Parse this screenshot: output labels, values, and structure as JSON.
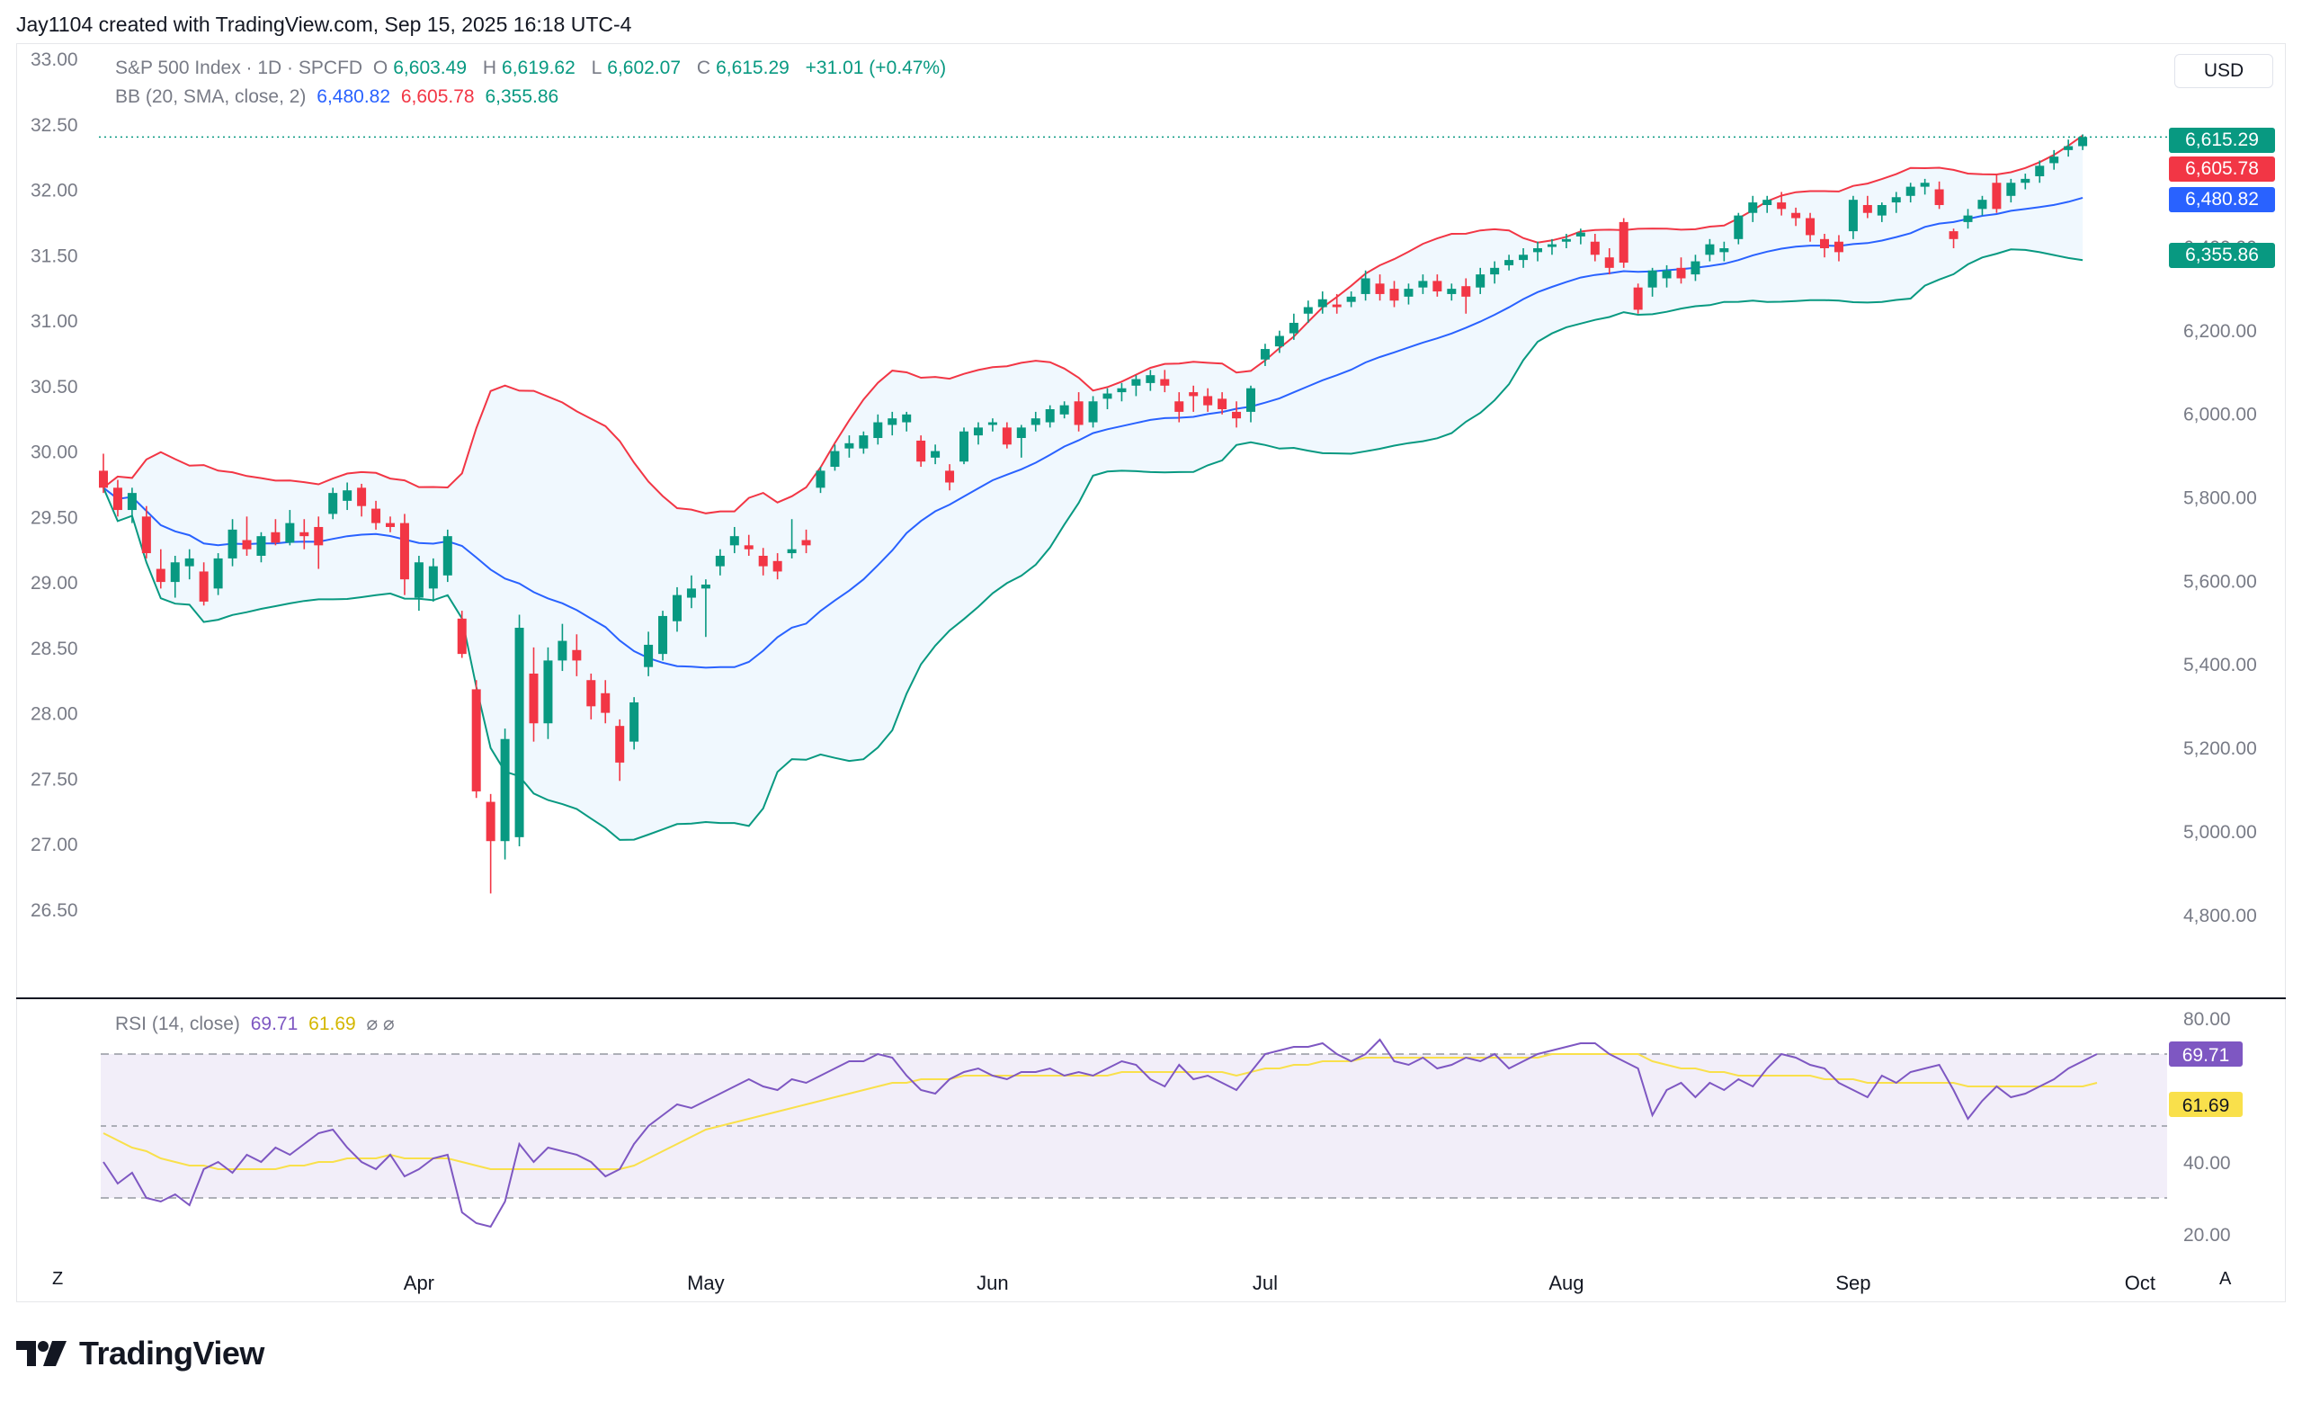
{
  "header": {
    "credit": "Jay1104 created with TradingView.com, Sep 15, 2025 16:18 UTC-4"
  },
  "legend": {
    "main": {
      "symbol": "S&P 500 Index · 1D · SPCFD",
      "o_label": "O",
      "o_value": "6,603.49",
      "h_label": "H",
      "h_value": "6,619.62",
      "l_label": "L",
      "l_value": "6,602.07",
      "c_label": "C",
      "c_value": "6,615.29",
      "change": "+31.01 (+0.47%)"
    },
    "bb": {
      "label": "BB (20, SMA, close, 2)",
      "basis": "6,480.82",
      "upper": "6,605.78",
      "lower": "6,355.86"
    },
    "rsi": {
      "label": "RSI (14, close)",
      "rsi": "69.71",
      "ma": "61.69",
      "icons": "⌀ ⌀"
    }
  },
  "toolbar": {
    "currency_button": "USD",
    "zoom_button": "Z",
    "auto_button": "A"
  },
  "price_tags": {
    "last": "6,615.29",
    "upper": "6,605.78",
    "basis": "6,480.82",
    "lower": "6,355.86"
  },
  "colors": {
    "up": "#089981",
    "down": "#f23645",
    "basis": "#2962ff",
    "upper": "#f23645",
    "lower": "#089981",
    "band_fill": "#e3f2fd",
    "rsi": "#7e57c2",
    "rsi_ma": "#f9e04b"
  },
  "footer": {
    "brand": "TradingView"
  },
  "chart_data": [
    {
      "type": "candlestick",
      "title": "S&P 500 Index · 1D · SPCFD",
      "left_axis": {
        "ticks": [
          "33.00",
          "32.50",
          "32.00",
          "31.50",
          "31.00",
          "30.50",
          "30.00",
          "29.50",
          "29.00",
          "28.50",
          "28.00",
          "27.50",
          "27.00",
          "26.50"
        ],
        "range": [
          26.3,
          33.0
        ]
      },
      "right_axis": {
        "ticks": [
          "6,400.00",
          "6,200.00",
          "6,000.00",
          "5,800.00",
          "5,600.00",
          "5,400.00",
          "5,200.00",
          "5,000.00",
          "4,800.00"
        ],
        "range": [
          4750,
          6850
        ]
      },
      "x_axis": {
        "months": [
          "Apr",
          "May",
          "Jun",
          "Jul",
          "Aug",
          "Sep",
          "Oct"
        ],
        "month_start_index": [
          22,
          42,
          62,
          81,
          102,
          122,
          142
        ]
      },
      "ohlc": [
        [
          29.85,
          29.98,
          29.68,
          29.72
        ],
        [
          29.72,
          29.78,
          29.5,
          29.55
        ],
        [
          29.55,
          29.72,
          29.45,
          29.68
        ],
        [
          29.5,
          29.58,
          29.18,
          29.22
        ],
        [
          29.1,
          29.25,
          28.95,
          29.0
        ],
        [
          29.0,
          29.2,
          28.88,
          29.15
        ],
        [
          29.12,
          29.25,
          29.02,
          29.18
        ],
        [
          29.08,
          29.15,
          28.82,
          28.85
        ],
        [
          28.95,
          29.22,
          28.9,
          29.18
        ],
        [
          29.18,
          29.48,
          29.12,
          29.4
        ],
        [
          29.32,
          29.5,
          29.2,
          29.25
        ],
        [
          29.2,
          29.38,
          29.15,
          29.35
        ],
        [
          29.38,
          29.48,
          29.28,
          29.3
        ],
        [
          29.3,
          29.55,
          29.28,
          29.45
        ],
        [
          29.38,
          29.48,
          29.25,
          29.35
        ],
        [
          29.42,
          29.5,
          29.1,
          29.28
        ],
        [
          29.52,
          29.72,
          29.48,
          29.68
        ],
        [
          29.62,
          29.76,
          29.55,
          29.7
        ],
        [
          29.72,
          29.75,
          29.5,
          29.58
        ],
        [
          29.56,
          29.62,
          29.4,
          29.45
        ],
        [
          29.45,
          29.5,
          29.38,
          29.42
        ],
        [
          29.45,
          29.52,
          28.9,
          29.02
        ],
        [
          28.88,
          29.2,
          28.78,
          29.15
        ],
        [
          28.95,
          29.18,
          28.85,
          29.12
        ],
        [
          29.05,
          29.4,
          29.0,
          29.35
        ],
        [
          28.72,
          28.78,
          28.42,
          28.45
        ],
        [
          28.18,
          28.25,
          27.35,
          27.4
        ],
        [
          27.32,
          27.38,
          26.62,
          27.02
        ],
        [
          27.02,
          27.88,
          26.88,
          27.8
        ],
        [
          27.05,
          28.75,
          26.98,
          28.65
        ],
        [
          28.3,
          28.5,
          27.78,
          27.92
        ],
        [
          27.92,
          28.5,
          27.8,
          28.4
        ],
        [
          28.4,
          28.68,
          28.32,
          28.55
        ],
        [
          28.48,
          28.6,
          28.28,
          28.4
        ],
        [
          28.25,
          28.3,
          27.95,
          28.05
        ],
        [
          28.15,
          28.25,
          27.92,
          28.0
        ],
        [
          27.9,
          27.95,
          27.48,
          27.62
        ],
        [
          27.78,
          28.12,
          27.72,
          28.08
        ],
        [
          28.35,
          28.62,
          28.28,
          28.52
        ],
        [
          28.45,
          28.78,
          28.4,
          28.74
        ],
        [
          28.7,
          28.96,
          28.62,
          28.9
        ],
        [
          28.88,
          29.05,
          28.8,
          28.95
        ],
        [
          28.95,
          29.02,
          28.58,
          28.98
        ],
        [
          29.12,
          29.25,
          29.05,
          29.2
        ],
        [
          29.28,
          29.42,
          29.22,
          29.35
        ],
        [
          29.28,
          29.36,
          29.2,
          29.25
        ],
        [
          29.2,
          29.26,
          29.05,
          29.12
        ],
        [
          29.16,
          29.22,
          29.02,
          29.08
        ],
        [
          29.22,
          29.48,
          29.18,
          29.25
        ],
        [
          29.32,
          29.4,
          29.22,
          29.28
        ],
        [
          29.72,
          29.88,
          29.68,
          29.85
        ],
        [
          29.88,
          30.05,
          29.85,
          30.0
        ],
        [
          30.02,
          30.12,
          29.95,
          30.06
        ],
        [
          30.02,
          30.15,
          29.98,
          30.12
        ],
        [
          30.1,
          30.28,
          30.05,
          30.22
        ],
        [
          30.2,
          30.3,
          30.12,
          30.25
        ],
        [
          30.22,
          30.3,
          30.15,
          30.28
        ],
        [
          30.08,
          30.12,
          29.88,
          29.92
        ],
        [
          29.95,
          30.05,
          29.9,
          30.0
        ],
        [
          29.85,
          29.9,
          29.7,
          29.76
        ],
        [
          29.92,
          30.18,
          29.9,
          30.15
        ],
        [
          30.12,
          30.22,
          30.05,
          30.18
        ],
        [
          30.2,
          30.25,
          30.15,
          30.22
        ],
        [
          30.18,
          30.22,
          30.02,
          30.05
        ],
        [
          30.1,
          30.2,
          29.95,
          30.18
        ],
        [
          30.2,
          30.3,
          30.15,
          30.25
        ],
        [
          30.22,
          30.35,
          30.18,
          30.32
        ],
        [
          30.28,
          30.38,
          30.25,
          30.35
        ],
        [
          30.38,
          30.45,
          30.15,
          30.2
        ],
        [
          30.22,
          30.42,
          30.18,
          30.38
        ],
        [
          30.4,
          30.48,
          30.32,
          30.44
        ],
        [
          30.45,
          30.52,
          30.38,
          30.48
        ],
        [
          30.5,
          30.58,
          30.42,
          30.55
        ],
        [
          30.52,
          30.62,
          30.46,
          30.58
        ],
        [
          30.55,
          30.62,
          30.45,
          30.5
        ],
        [
          30.38,
          30.45,
          30.22,
          30.3
        ],
        [
          30.45,
          30.5,
          30.3,
          30.42
        ],
        [
          30.42,
          30.48,
          30.3,
          30.35
        ],
        [
          30.4,
          30.45,
          30.28,
          30.32
        ],
        [
          30.3,
          30.38,
          30.18,
          30.25
        ],
        [
          30.3,
          30.5,
          30.22,
          30.48
        ],
        [
          30.7,
          30.82,
          30.65,
          30.78
        ],
        [
          30.8,
          30.92,
          30.75,
          30.88
        ],
        [
          30.9,
          31.05,
          30.85,
          30.98
        ],
        [
          31.05,
          31.15,
          30.98,
          31.1
        ],
        [
          31.1,
          31.22,
          31.05,
          31.16
        ],
        [
          31.12,
          31.2,
          31.05,
          31.1
        ],
        [
          31.14,
          31.22,
          31.1,
          31.18
        ],
        [
          31.2,
          31.38,
          31.15,
          31.32
        ],
        [
          31.28,
          31.35,
          31.15,
          31.2
        ],
        [
          31.24,
          31.3,
          31.1,
          31.15
        ],
        [
          31.18,
          31.28,
          31.12,
          31.24
        ],
        [
          31.25,
          31.35,
          31.2,
          31.3
        ],
        [
          31.3,
          31.35,
          31.18,
          31.22
        ],
        [
          31.2,
          31.28,
          31.15,
          31.24
        ],
        [
          31.26,
          31.32,
          31.05,
          31.18
        ],
        [
          31.25,
          31.4,
          31.2,
          31.35
        ],
        [
          31.35,
          31.45,
          31.28,
          31.4
        ],
        [
          31.42,
          31.5,
          31.38,
          31.46
        ],
        [
          31.46,
          31.55,
          31.4,
          31.5
        ],
        [
          31.52,
          31.6,
          31.45,
          31.55
        ],
        [
          31.56,
          31.62,
          31.5,
          31.58
        ],
        [
          31.6,
          31.66,
          31.55,
          31.62
        ],
        [
          31.64,
          31.7,
          31.58,
          31.67
        ],
        [
          31.6,
          31.66,
          31.45,
          31.5
        ],
        [
          31.48,
          31.55,
          31.35,
          31.4
        ],
        [
          31.75,
          31.78,
          31.4,
          31.44
        ],
        [
          31.25,
          31.28,
          31.05,
          31.08
        ],
        [
          31.25,
          31.4,
          31.18,
          31.38
        ],
        [
          31.32,
          31.42,
          31.25,
          31.38
        ],
        [
          31.4,
          31.48,
          31.28,
          31.32
        ],
        [
          31.35,
          31.5,
          31.3,
          31.45
        ],
        [
          31.5,
          31.62,
          31.45,
          31.58
        ],
        [
          31.52,
          31.6,
          31.45,
          31.55
        ],
        [
          31.62,
          31.82,
          31.58,
          31.8
        ],
        [
          31.82,
          31.95,
          31.75,
          31.9
        ],
        [
          31.88,
          31.95,
          31.82,
          31.92
        ],
        [
          31.9,
          31.98,
          31.8,
          31.85
        ],
        [
          31.82,
          31.86,
          31.72,
          31.78
        ],
        [
          31.78,
          31.82,
          31.6,
          31.65
        ],
        [
          31.62,
          31.66,
          31.48,
          31.55
        ],
        [
          31.6,
          31.65,
          31.45,
          31.52
        ],
        [
          31.68,
          31.95,
          31.62,
          31.92
        ],
        [
          31.88,
          31.95,
          31.78,
          31.82
        ],
        [
          31.8,
          31.9,
          31.75,
          31.88
        ],
        [
          31.9,
          31.98,
          31.82,
          31.94
        ],
        [
          31.95,
          32.05,
          31.9,
          32.02
        ],
        [
          32.02,
          32.08,
          31.96,
          32.05
        ],
        [
          32.0,
          32.06,
          31.85,
          31.88
        ],
        [
          31.68,
          31.7,
          31.55,
          31.62
        ],
        [
          31.75,
          31.85,
          31.7,
          31.8
        ],
        [
          31.85,
          31.95,
          31.8,
          31.92
        ],
        [
          32.05,
          32.12,
          31.82,
          31.85
        ],
        [
          31.95,
          32.08,
          31.9,
          32.05
        ],
        [
          32.05,
          32.12,
          32.0,
          32.08
        ],
        [
          32.1,
          32.22,
          32.05,
          32.18
        ],
        [
          32.2,
          32.3,
          32.15,
          32.25
        ],
        [
          32.3,
          32.38,
          32.25,
          32.33
        ],
        [
          32.33,
          32.42,
          32.3,
          32.4
        ]
      ],
      "bollinger": {
        "length": 20,
        "basis": "SMA",
        "source": "close",
        "stddev": 2,
        "last_basis": 6480.82,
        "last_upper": 6605.78,
        "last_lower": 6355.86
      },
      "last_price": 6615.29
    },
    {
      "type": "line",
      "title": "RSI (14, close)",
      "y_axis": {
        "ticks": [
          "80.00",
          "40.00",
          "20.00"
        ],
        "range": [
          18,
          82
        ],
        "bands": [
          70,
          50,
          30
        ]
      },
      "series": [
        {
          "name": "RSI",
          "values": [
            40,
            34,
            37,
            30,
            29,
            31,
            28,
            38,
            40,
            37,
            42,
            40,
            44,
            42,
            45,
            48,
            49,
            44,
            40,
            38,
            42,
            36,
            38,
            41,
            42,
            26,
            23,
            22,
            29,
            45,
            40,
            44,
            43,
            42,
            40,
            36,
            38,
            45,
            50,
            53,
            56,
            55,
            57,
            59,
            61,
            63,
            61,
            60,
            63,
            62,
            64,
            66,
            68,
            68,
            70,
            69,
            64,
            60,
            59,
            63,
            65,
            66,
            64,
            63,
            65,
            65,
            66,
            64,
            65,
            64,
            66,
            68,
            67,
            63,
            61,
            67,
            63,
            64,
            62,
            60,
            65,
            70,
            71,
            72,
            72,
            73,
            70,
            68,
            70,
            74,
            68,
            67,
            69,
            66,
            67,
            69,
            68,
            70,
            66,
            68,
            70,
            71,
            72,
            73,
            73,
            70,
            68,
            66,
            53,
            60,
            62,
            58,
            62,
            60,
            63,
            61,
            66,
            70,
            69,
            67,
            66,
            62,
            60,
            58,
            64,
            62,
            65,
            66,
            67,
            60,
            52,
            57,
            61,
            58,
            59,
            61,
            63,
            66,
            68,
            70
          ]
        },
        {
          "name": "RSI-based MA",
          "values": [
            48,
            46,
            44,
            43,
            41,
            40,
            39,
            39,
            38,
            38,
            38,
            38,
            38,
            39,
            39,
            40,
            40,
            41,
            41,
            41,
            42,
            41,
            41,
            41,
            41,
            40,
            39,
            38,
            38,
            38,
            38,
            38,
            38,
            38,
            38,
            38,
            38,
            39,
            41,
            43,
            45,
            47,
            49,
            50,
            51,
            52,
            53,
            54,
            55,
            56,
            57,
            58,
            59,
            60,
            61,
            62,
            62,
            63,
            63,
            63,
            64,
            64,
            64,
            64,
            64,
            64,
            64,
            64,
            64,
            64,
            64,
            65,
            65,
            65,
            65,
            65,
            65,
            65,
            65,
            64,
            65,
            66,
            66,
            67,
            67,
            68,
            68,
            68,
            69,
            69,
            69,
            69,
            69,
            69,
            69,
            69,
            69,
            69,
            69,
            69,
            69,
            70,
            70,
            70,
            70,
            70,
            70,
            70,
            68,
            67,
            66,
            66,
            65,
            65,
            64,
            64,
            64,
            64,
            64,
            64,
            63,
            63,
            63,
            62,
            62,
            62,
            62,
            62,
            62,
            62,
            61,
            61,
            61,
            61,
            61,
            61,
            61,
            61,
            61,
            62
          ]
        }
      ]
    }
  ]
}
